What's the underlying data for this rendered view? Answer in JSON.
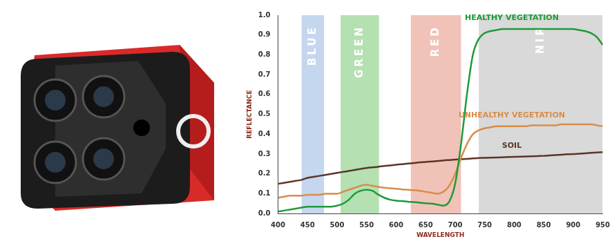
{
  "chart_data": {
    "type": "line",
    "x_label": "WAVELENGTH",
    "y_label": "REFLECTANCE",
    "x": [
      400,
      410,
      420,
      430,
      440,
      450,
      460,
      470,
      480,
      490,
      500,
      510,
      520,
      530,
      540,
      550,
      560,
      570,
      580,
      590,
      600,
      610,
      620,
      630,
      640,
      650,
      660,
      670,
      680,
      690,
      700,
      710,
      720,
      730,
      740,
      750,
      760,
      770,
      780,
      790,
      800,
      810,
      820,
      830,
      840,
      850,
      860,
      870,
      880,
      890,
      900,
      910,
      920,
      930,
      940,
      950
    ],
    "series": [
      {
        "name": "HEALTHY VEGETATION",
        "color": "#1e9a38",
        "values": [
          0.01,
          0.015,
          0.02,
          0.025,
          0.03,
          0.035,
          0.035,
          0.035,
          0.035,
          0.035,
          0.04,
          0.05,
          0.07,
          0.1,
          0.115,
          0.12,
          0.115,
          0.095,
          0.08,
          0.07,
          0.065,
          0.063,
          0.06,
          0.058,
          0.055,
          0.052,
          0.05,
          0.045,
          0.04,
          0.06,
          0.15,
          0.35,
          0.6,
          0.8,
          0.88,
          0.91,
          0.92,
          0.925,
          0.93,
          0.93,
          0.93,
          0.93,
          0.93,
          0.93,
          0.93,
          0.93,
          0.93,
          0.93,
          0.93,
          0.93,
          0.93,
          0.925,
          0.92,
          0.91,
          0.89,
          0.85
        ]
      },
      {
        "name": "UNHEALTHY VEGETATION",
        "color": "#d98c4a",
        "values": [
          0.08,
          0.085,
          0.09,
          0.09,
          0.09,
          0.095,
          0.095,
          0.095,
          0.1,
          0.1,
          0.1,
          0.11,
          0.12,
          0.13,
          0.14,
          0.145,
          0.14,
          0.135,
          0.13,
          0.128,
          0.125,
          0.122,
          0.12,
          0.118,
          0.115,
          0.11,
          0.105,
          0.1,
          0.11,
          0.14,
          0.2,
          0.28,
          0.35,
          0.4,
          0.42,
          0.43,
          0.435,
          0.44,
          0.44,
          0.44,
          0.44,
          0.44,
          0.44,
          0.445,
          0.445,
          0.445,
          0.445,
          0.445,
          0.45,
          0.45,
          0.45,
          0.45,
          0.45,
          0.45,
          0.445,
          0.44
        ]
      },
      {
        "name": "SOIL",
        "color": "#5a3526",
        "values": [
          0.15,
          0.155,
          0.16,
          0.165,
          0.17,
          0.18,
          0.185,
          0.19,
          0.195,
          0.2,
          0.205,
          0.21,
          0.215,
          0.22,
          0.225,
          0.23,
          0.233,
          0.236,
          0.24,
          0.243,
          0.246,
          0.249,
          0.252,
          0.255,
          0.258,
          0.26,
          0.263,
          0.265,
          0.268,
          0.27,
          0.272,
          0.274,
          0.276,
          0.278,
          0.28,
          0.281,
          0.282,
          0.283,
          0.284,
          0.285,
          0.286,
          0.287,
          0.288,
          0.289,
          0.29,
          0.291,
          0.293,
          0.295,
          0.297,
          0.299,
          0.3,
          0.302,
          0.304,
          0.306,
          0.308,
          0.31
        ]
      }
    ],
    "bands": [
      {
        "name": "BLUE",
        "range": [
          440,
          478
        ],
        "color": "#c5d7ee"
      },
      {
        "name": "GREEN",
        "range": [
          506,
          571
        ],
        "color": "#b4e0b2"
      },
      {
        "name": "RED",
        "range": [
          625,
          710
        ],
        "color": "#f1c2b8"
      },
      {
        "name": "NIR",
        "range": [
          740,
          950
        ],
        "color": "#d9d9d9"
      }
    ],
    "xlim": [
      400,
      950
    ],
    "xticks": [
      400,
      450,
      500,
      550,
      600,
      650,
      700,
      750,
      800,
      850,
      900,
      950
    ],
    "ylim": [
      0,
      1
    ],
    "yticks": [
      {
        "value": 0,
        "label": "0.0"
      },
      0.1,
      0.2,
      0.3,
      0.4,
      0.5,
      0.6,
      0.7,
      0.8,
      0.9,
      {
        "value": 1,
        "label": "1.0"
      }
    ],
    "grid": false
  }
}
